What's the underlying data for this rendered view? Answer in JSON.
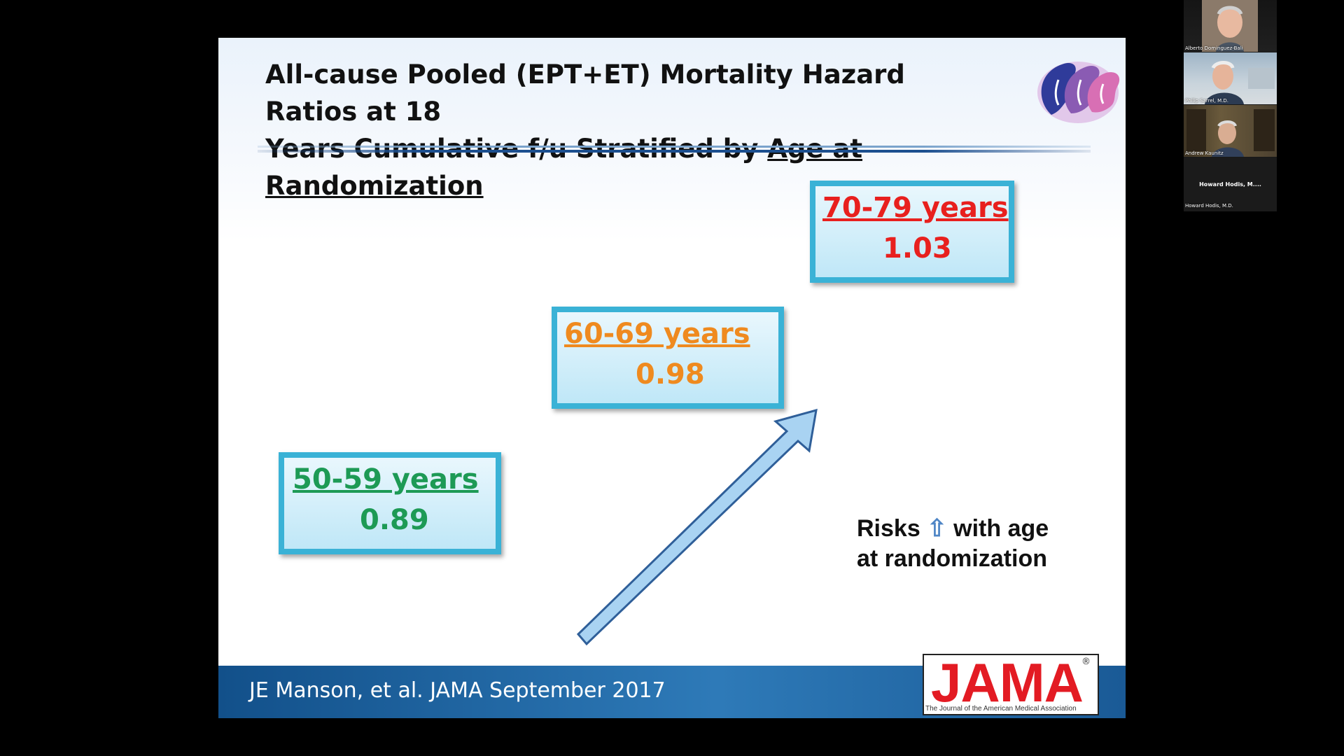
{
  "slide": {
    "title_line1": "All-cause Pooled (EPT+ET) Mortality Hazard Ratios at 18",
    "title_line2_plain": "Years Cumulative f/u Stratified by ",
    "title_line2_underlined": "Age at Randomization",
    "boxes": [
      {
        "range": "50-59 years",
        "value": "0.89",
        "color": "#1d9a55"
      },
      {
        "range": "60-69 years",
        "value": "0.98",
        "color": "#ef8a1f"
      },
      {
        "range": "70-79 years",
        "value": "1.03",
        "color": "#e8201e"
      }
    ],
    "risk_text_before": "Risks",
    "risk_arrow": "⇧",
    "risk_text_after": "with age",
    "risk_line2": "at randomization",
    "footer_citation": "JE Manson, et al. JAMA  September 2017",
    "jama_logo": "JAMA",
    "jama_registered": "®",
    "jama_subtitle": "The Journal of the American Medical Association"
  },
  "participants": [
    {
      "name": "Alberto Dominguez-Bali"
    },
    {
      "name": "Philip Sarrel, M.D."
    },
    {
      "name": "Andrew Kaunitz"
    },
    {
      "label": "Howard Hodis, M....",
      "name": "Howard Hodis, M.D."
    }
  ]
}
